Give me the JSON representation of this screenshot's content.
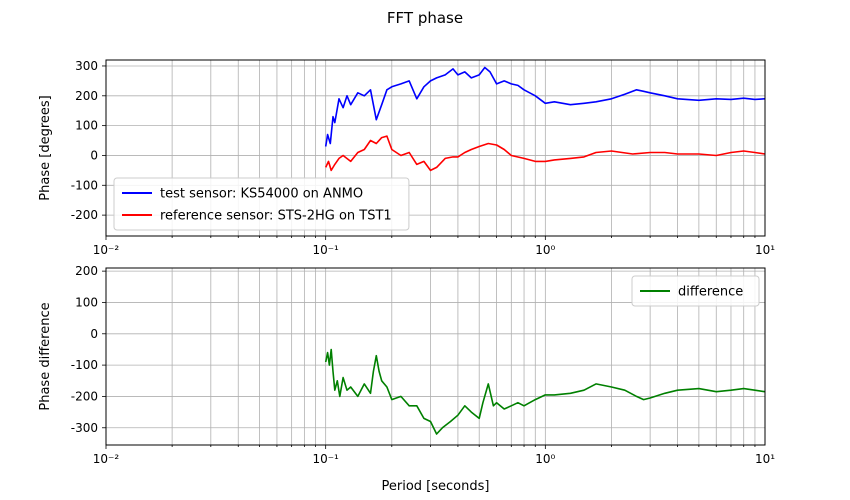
{
  "figure_title": "FFT phase",
  "colors": {
    "test": "#0000ff",
    "reference": "#ff0000",
    "difference": "#008000",
    "grid": "#b0b0b0"
  },
  "chart_data": [
    {
      "type": "line",
      "title": "",
      "xlabel": "",
      "ylabel": "Phase [degrees]",
      "xscale": "log",
      "xlim": [
        0.01,
        10
      ],
      "ylim": [
        -270,
        320
      ],
      "yticks": [
        300,
        200,
        100,
        0,
        -100,
        -200
      ],
      "xticks": [
        0.01,
        0.1,
        1,
        10
      ],
      "grid": true,
      "legend_loc": "lower-left",
      "series": [
        {
          "name": "test sensor: KS54000 on ANMO",
          "color": "#0000ff",
          "x": [
            0.1,
            0.102,
            0.105,
            0.108,
            0.11,
            0.115,
            0.12,
            0.125,
            0.13,
            0.14,
            0.15,
            0.16,
            0.17,
            0.18,
            0.19,
            0.2,
            0.22,
            0.24,
            0.26,
            0.28,
            0.3,
            0.32,
            0.35,
            0.38,
            0.4,
            0.43,
            0.46,
            0.5,
            0.53,
            0.56,
            0.6,
            0.65,
            0.7,
            0.75,
            0.8,
            0.9,
            1.0,
            1.1,
            1.3,
            1.5,
            1.7,
            2.0,
            2.3,
            2.6,
            2.8,
            3.0,
            3.5,
            4.0,
            5.0,
            6.0,
            7.0,
            8.0,
            9.0,
            10.0
          ],
          "y": [
            30,
            70,
            40,
            130,
            110,
            190,
            160,
            200,
            170,
            210,
            200,
            220,
            120,
            170,
            220,
            230,
            240,
            250,
            190,
            230,
            250,
            260,
            270,
            290,
            270,
            280,
            260,
            270,
            295,
            280,
            240,
            250,
            240,
            235,
            220,
            200,
            175,
            180,
            170,
            175,
            180,
            190,
            205,
            220,
            215,
            210,
            200,
            190,
            185,
            190,
            188,
            192,
            188,
            190
          ]
        },
        {
          "name": "reference sensor: STS-2HG on TST1",
          "color": "#ff0000",
          "x": [
            0.1,
            0.103,
            0.106,
            0.11,
            0.115,
            0.12,
            0.13,
            0.14,
            0.15,
            0.16,
            0.17,
            0.18,
            0.19,
            0.2,
            0.22,
            0.24,
            0.26,
            0.28,
            0.3,
            0.32,
            0.35,
            0.38,
            0.4,
            0.43,
            0.46,
            0.5,
            0.55,
            0.6,
            0.65,
            0.7,
            0.8,
            0.9,
            1.0,
            1.1,
            1.3,
            1.5,
            1.7,
            2.0,
            2.5,
            3.0,
            3.5,
            4.0,
            5.0,
            6.0,
            7.0,
            8.0,
            9.0,
            10.0
          ],
          "y": [
            -40,
            -20,
            -50,
            -30,
            -10,
            0,
            -20,
            10,
            20,
            50,
            40,
            60,
            65,
            20,
            0,
            10,
            -30,
            -20,
            -50,
            -40,
            -10,
            -5,
            -5,
            10,
            20,
            30,
            40,
            35,
            20,
            0,
            -10,
            -20,
            -20,
            -15,
            -10,
            -5,
            10,
            15,
            5,
            10,
            10,
            5,
            5,
            0,
            10,
            15,
            10,
            5
          ]
        }
      ]
    },
    {
      "type": "line",
      "title": "",
      "xlabel": "Period [seconds]",
      "ylabel": "Phase difference",
      "xscale": "log",
      "xlim": [
        0.01,
        10
      ],
      "ylim": [
        -355,
        210
      ],
      "yticks": [
        200,
        100,
        0,
        -100,
        -200,
        -300
      ],
      "xticks": [
        0.01,
        0.1,
        1,
        10
      ],
      "grid": true,
      "legend_loc": "upper-right",
      "series": [
        {
          "name": "difference",
          "color": "#008000",
          "x": [
            0.1,
            0.102,
            0.104,
            0.106,
            0.108,
            0.11,
            0.113,
            0.116,
            0.12,
            0.125,
            0.13,
            0.14,
            0.15,
            0.16,
            0.165,
            0.17,
            0.175,
            0.18,
            0.19,
            0.2,
            0.22,
            0.24,
            0.26,
            0.28,
            0.3,
            0.32,
            0.34,
            0.37,
            0.4,
            0.43,
            0.46,
            0.5,
            0.52,
            0.55,
            0.58,
            0.6,
            0.65,
            0.7,
            0.75,
            0.8,
            0.9,
            1.0,
            1.1,
            1.3,
            1.5,
            1.7,
            2.0,
            2.3,
            2.6,
            2.8,
            3.0,
            3.5,
            4.0,
            5.0,
            6.0,
            7.0,
            8.0,
            9.0,
            10.0
          ],
          "y": [
            -90,
            -60,
            -100,
            -50,
            -120,
            -180,
            -150,
            -200,
            -140,
            -180,
            -170,
            -200,
            -160,
            -190,
            -120,
            -70,
            -120,
            -150,
            -170,
            -210,
            -200,
            -230,
            -230,
            -270,
            -280,
            -320,
            -300,
            -280,
            -260,
            -230,
            -250,
            -270,
            -220,
            -160,
            -230,
            -220,
            -240,
            -230,
            -220,
            -230,
            -210,
            -195,
            -195,
            -190,
            -180,
            -160,
            -170,
            -180,
            -200,
            -210,
            -205,
            -190,
            -180,
            -175,
            -185,
            -180,
            -175,
            -180,
            -185
          ]
        }
      ]
    }
  ]
}
